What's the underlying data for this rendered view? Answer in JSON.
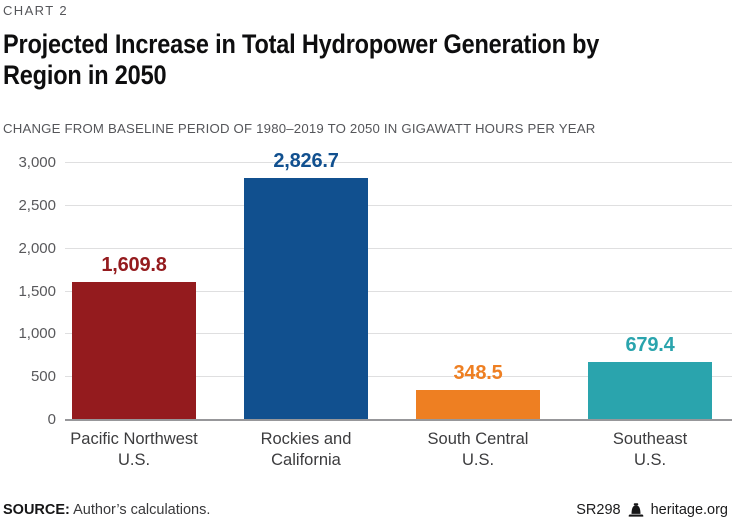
{
  "header": {
    "kicker": "CHART 2",
    "title": "Projected Increase in Total Hydropower Generation by\nRegion in 2050",
    "subtitle": "CHANGE FROM BASELINE PERIOD OF 1980–2019 TO 2050 IN GIGAWATT HOURS PER YEAR"
  },
  "chart_data": {
    "type": "bar",
    "title": "Projected Increase in Total Hydropower Generation by Region in 2050",
    "unit_note": "Change from baseline period of 1980–2019 to 2050 in gigawatt hours per year",
    "categories": [
      "Pacific Northwest\nU.S.",
      "Rockies and\nCalifornia",
      "South Central\nU.S.",
      "Southeast\nU.S."
    ],
    "values": [
      1609.8,
      2826.7,
      348.5,
      679.4
    ],
    "value_labels": [
      "1,609.8",
      "2,826.7",
      "348.5",
      "679.4"
    ],
    "bar_colors": [
      "#941B1E",
      "#11508F",
      "#EE7F22",
      "#2AA4AD"
    ],
    "ylim": [
      0,
      3000
    ],
    "yticks": [
      0,
      500,
      1000,
      1500,
      2000,
      2500,
      3000
    ],
    "ytick_labels": [
      "0",
      "500",
      "1,000",
      "1,500",
      "2,000",
      "2,500",
      "3,000"
    ],
    "grid": "horizontal",
    "legend": "none",
    "xlabel": "",
    "ylabel": ""
  },
  "footer": {
    "source_label": "SOURCE:",
    "source_text": "Author’s calculations.",
    "report_id": "SR298",
    "website": "heritage.org",
    "logo_icon": "heritage-bell-icon"
  }
}
